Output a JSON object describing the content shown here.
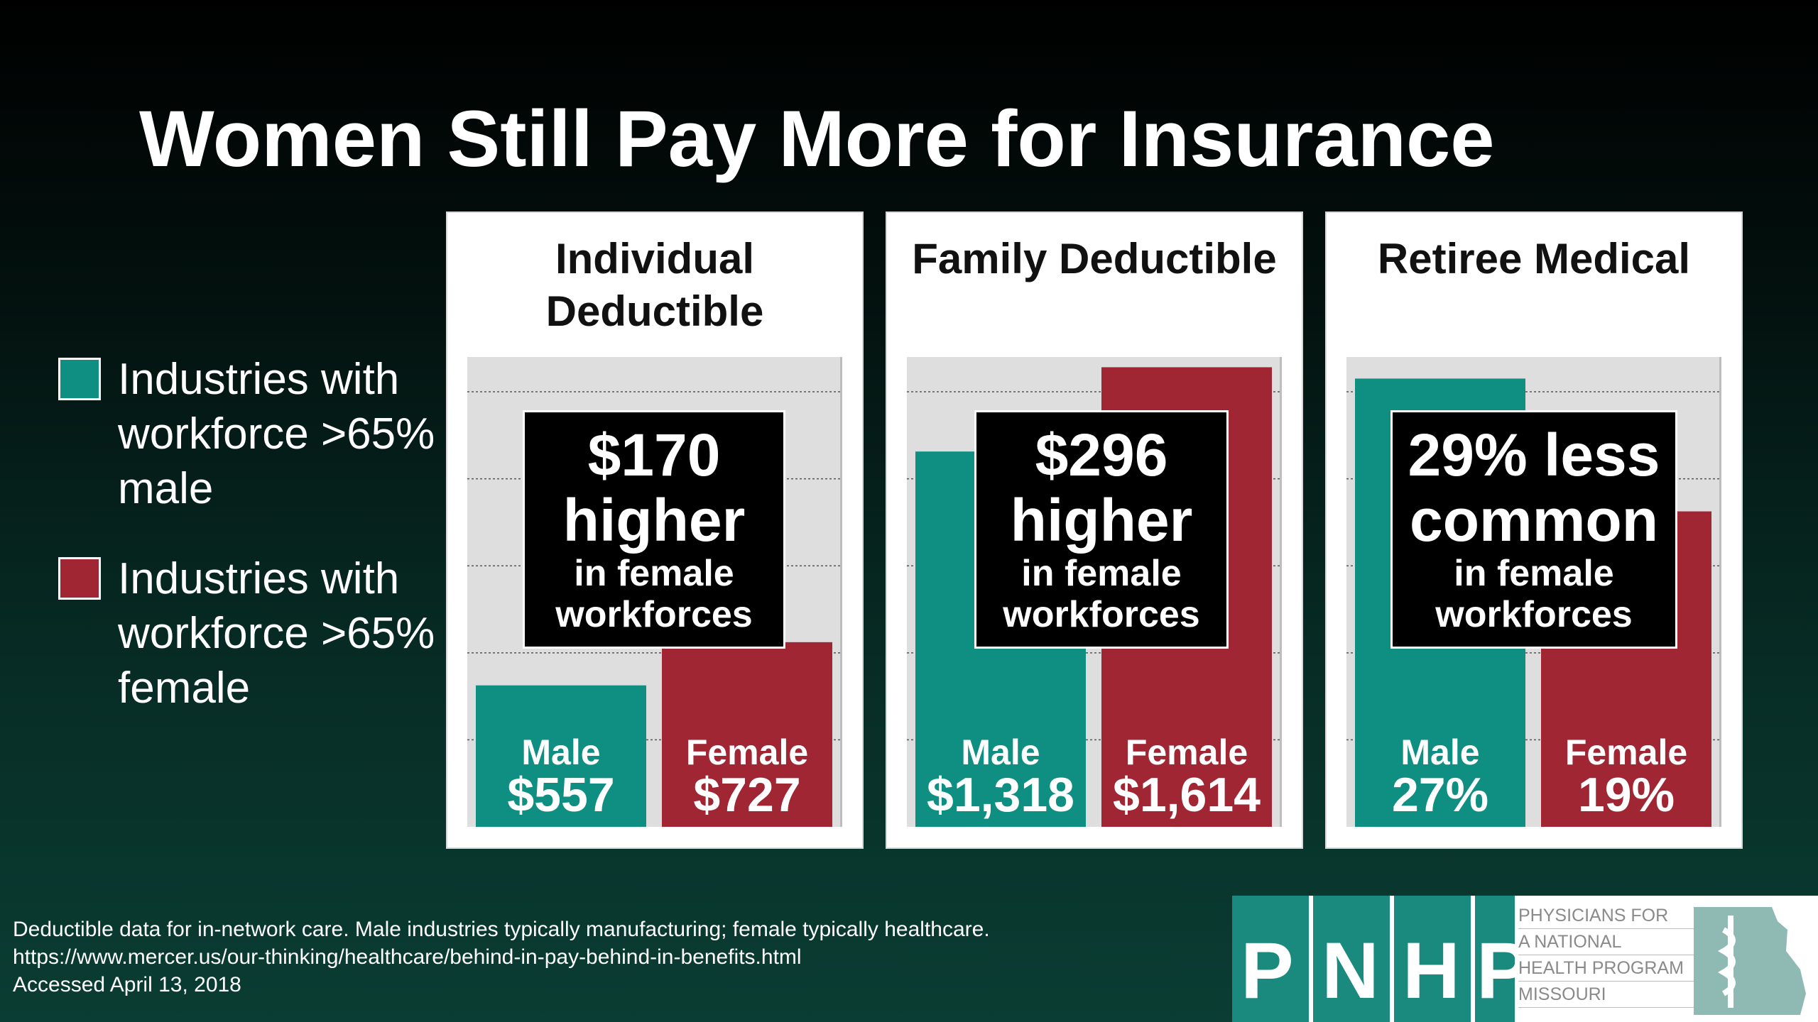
{
  "title": "Women Still Pay More for Insurance",
  "legend": [
    {
      "label": "Industries with workforce >65% male",
      "color": "#0f8f81"
    },
    {
      "label": "Industries with workforce >65% female",
      "color": "#a12634"
    }
  ],
  "chart_data": [
    {
      "type": "bar",
      "title": "Individual Deductible",
      "categories": [
        "Male",
        "Female"
      ],
      "values": [
        557,
        727
      ],
      "value_labels": [
        "$557",
        "$727"
      ],
      "colors": [
        "#0f8f81",
        "#a12634"
      ],
      "ylim": [
        0,
        1850
      ],
      "grid": true,
      "callout": {
        "big_line1": "$170",
        "big_line2": "higher",
        "small_line1": "in female",
        "small_line2": "workforces"
      }
    },
    {
      "type": "bar",
      "title": "Family Deductible",
      "categories": [
        "Male",
        "Female"
      ],
      "values": [
        1318,
        1614
      ],
      "value_labels": [
        "$1,318",
        "$1,614"
      ],
      "colors": [
        "#0f8f81",
        "#a12634"
      ],
      "ylim": [
        0,
        1650
      ],
      "grid": true,
      "callout": {
        "big_line1": "$296",
        "big_line2": "higher",
        "small_line1": "in female",
        "small_line2": "workforces"
      }
    },
    {
      "type": "bar",
      "title": "Retiree Medical",
      "categories": [
        "Male",
        "Female"
      ],
      "values": [
        27,
        19
      ],
      "value_labels": [
        "27%",
        "19%"
      ],
      "colors": [
        "#0f8f81",
        "#a12634"
      ],
      "ylim": [
        0,
        28.3
      ],
      "grid": true,
      "callout": {
        "big_line1": "29% less",
        "big_line2": "common",
        "small_line1": "in female",
        "small_line2": "workforces"
      }
    }
  ],
  "footnote": [
    "Deductible data for in-network care. Male industries typically manufacturing; female typically healthcare.",
    "https://www.mercer.us/our-thinking/healthcare/behind-in-pay-behind-in-benefits.html",
    "Accessed April 13, 2018"
  ],
  "logo": {
    "letters": [
      "P",
      "N",
      "H",
      "P"
    ],
    "lines": [
      "PHYSICIANS FOR",
      "A NATIONAL",
      "HEALTH PROGRAM",
      "MISSOURI"
    ],
    "color": "#1b8a7e"
  }
}
